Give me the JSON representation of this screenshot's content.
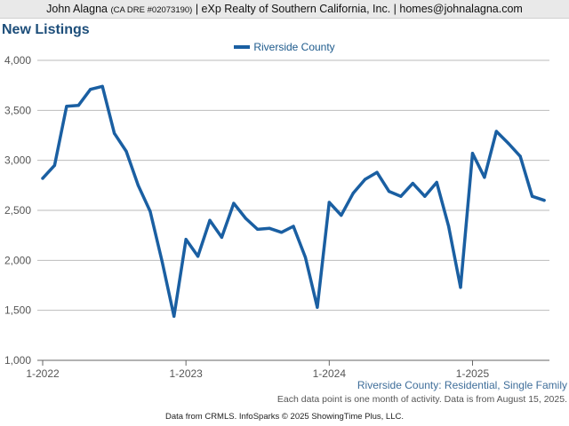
{
  "header": {
    "name": "John Alagna",
    "dre": "(CA DRE #02073190)",
    "company": "| eXp Realty of Southern California, Inc. |",
    "email": "homes@johnalagna.com"
  },
  "colors": {
    "line": "#1a5fa2",
    "grid": "#bbbbbb",
    "axis": "#555555"
  },
  "chart_data": {
    "type": "line",
    "title": "New Listings",
    "subtitle": "Riverside County: Residential, Single Family",
    "note": "Each data point is one month of activity. Data is from August 15, 2025.",
    "source": "Data from CRMLS. InfoSparks © 2025 ShowingTime Plus, LLC.",
    "legend_position": "top-center",
    "grid": true,
    "ylim": [
      1000,
      4000
    ],
    "yticks": [
      1000,
      1500,
      2000,
      2500,
      3000,
      3500,
      4000
    ],
    "ytick_labels": [
      "1,000",
      "1,500",
      "2,000",
      "2,500",
      "3,000",
      "3,500",
      "4,000"
    ],
    "xticks": [
      "2022-01",
      "2023-01",
      "2024-01",
      "2025-01"
    ],
    "xtick_labels": [
      "1-2022",
      "1-2023",
      "1-2024",
      "1-2025"
    ],
    "series": [
      {
        "name": "Riverside County",
        "x": [
          "2022-01",
          "2022-02",
          "2022-03",
          "2022-04",
          "2022-05",
          "2022-06",
          "2022-07",
          "2022-08",
          "2022-09",
          "2022-10",
          "2022-11",
          "2022-12",
          "2023-01",
          "2023-02",
          "2023-03",
          "2023-04",
          "2023-05",
          "2023-06",
          "2023-07",
          "2023-08",
          "2023-09",
          "2023-10",
          "2023-11",
          "2023-12",
          "2024-01",
          "2024-02",
          "2024-03",
          "2024-04",
          "2024-05",
          "2024-06",
          "2024-07",
          "2024-08",
          "2024-09",
          "2024-10",
          "2024-11",
          "2024-12",
          "2025-01",
          "2025-02",
          "2025-03",
          "2025-04",
          "2025-05",
          "2025-06",
          "2025-07"
        ],
        "values": [
          2820,
          2950,
          3540,
          3550,
          3710,
          3740,
          3270,
          3090,
          2750,
          2490,
          1990,
          1440,
          2210,
          2040,
          2400,
          2230,
          2570,
          2420,
          2310,
          2320,
          2280,
          2340,
          2030,
          1530,
          2580,
          2450,
          2670,
          2810,
          2880,
          2690,
          2640,
          2770,
          2640,
          2780,
          2340,
          1730,
          3070,
          2830,
          3290,
          3170,
          3040,
          2640,
          2600
        ]
      }
    ]
  }
}
